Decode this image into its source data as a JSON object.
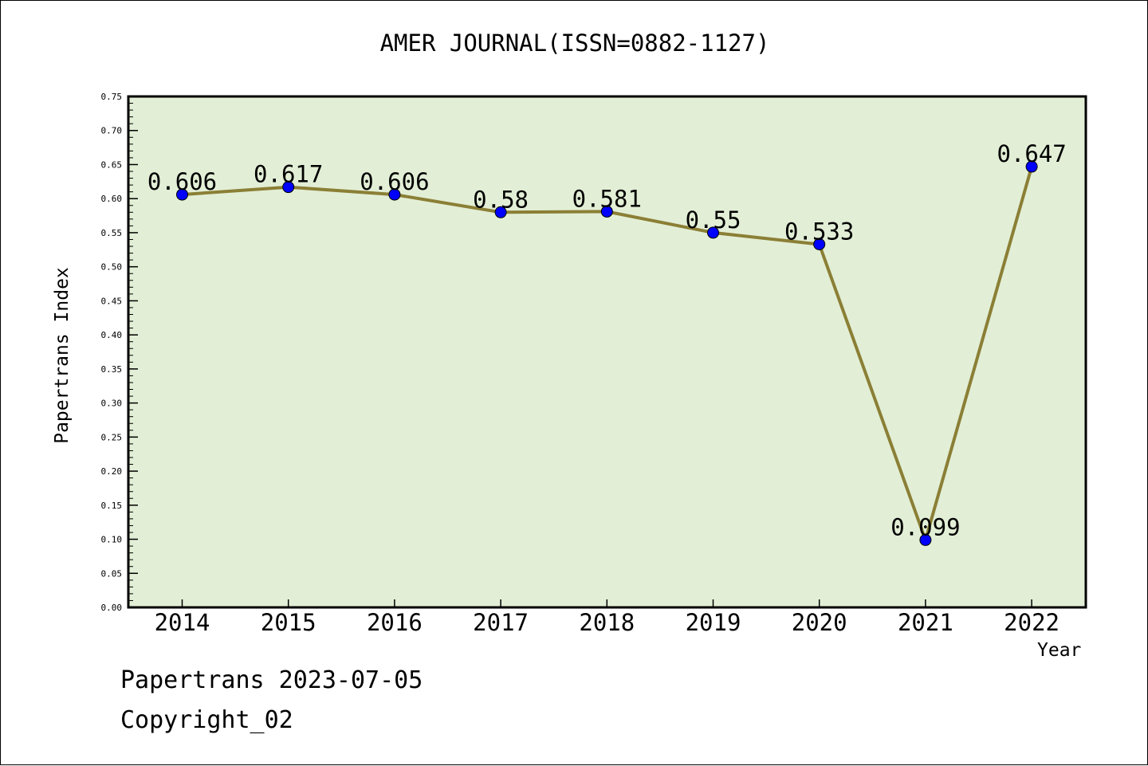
{
  "chart_data": {
    "type": "line",
    "title": "AMER JOURNAL(ISSN=0882-1127)",
    "xlabel": "Year",
    "ylabel": "Papertrans Index",
    "categories": [
      "2014",
      "2015",
      "2016",
      "2017",
      "2018",
      "2019",
      "2020",
      "2021",
      "2022"
    ],
    "series": [
      {
        "values": [
          0.606,
          0.617,
          0.606,
          0.58,
          0.581,
          0.55,
          0.533,
          0.099,
          0.647
        ],
        "data_labels": [
          "0.606",
          "0.617",
          "0.606",
          "0.58",
          "0.581",
          "0.55",
          "0.533",
          "0.099",
          "0.647"
        ]
      }
    ],
    "ylim": [
      0,
      0.75
    ],
    "yticks": [
      "0.00",
      "0.05",
      "0.10",
      "0.15",
      "0.20",
      "0.25",
      "0.30",
      "0.35",
      "0.40",
      "0.45",
      "0.50",
      "0.55",
      "0.60",
      "0.65",
      "0.70",
      "0.75"
    ],
    "grid": false,
    "legend": "none",
    "colors": {
      "plot_background": "#e2efd6",
      "line": "#8b7f36",
      "marker": "#0000ff"
    }
  },
  "footer": {
    "date_text": "Papertrans 2023-07-05",
    "copyright_text": "Copyright_02"
  }
}
